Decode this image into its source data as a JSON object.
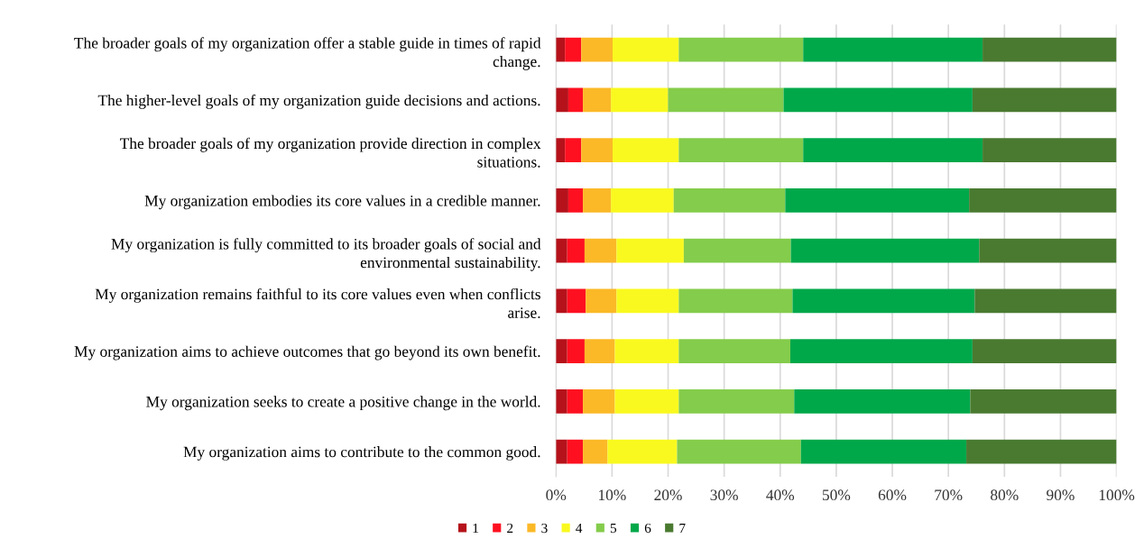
{
  "chart_data": {
    "type": "bar",
    "orientation": "horizontal",
    "stacked": true,
    "categories": [
      "The broader goals of my organization offer a stable guide in times of rapid\nchange.",
      "The higher-level goals of my organization guide decisions and actions.",
      "The broader goals of my organization provide direction in complex\nsituations.",
      "My organization embodies its core values in a credible manner.",
      "My organization is fully committed to its broader goals of social and\nenvironmental sustainability.",
      "My organization remains faithful to its core values even when conflicts\narise.",
      "My organization aims to achieve outcomes that go beyond its own benefit.",
      "My organization seeks to create a positive change in the world.",
      "My organization aims to contribute to the common good."
    ],
    "series": [
      {
        "name": "1",
        "color": "#b5121b",
        "values": [
          1.6,
          2.2,
          1.6,
          2.2,
          2.0,
          2.0,
          2.0,
          2.0,
          2.0
        ]
      },
      {
        "name": "2",
        "color": "#fe1020",
        "values": [
          2.9,
          2.6,
          2.9,
          2.6,
          3.1,
          3.3,
          3.1,
          2.8,
          2.8
        ]
      },
      {
        "name": "3",
        "color": "#fbb927",
        "values": [
          5.6,
          5.0,
          5.6,
          5.0,
          5.7,
          5.5,
          5.4,
          5.7,
          4.4
        ]
      },
      {
        "name": "4",
        "color": "#f9f91f",
        "values": [
          11.8,
          10.2,
          11.8,
          11.2,
          12.0,
          11.1,
          11.4,
          11.4,
          12.4
        ]
      },
      {
        "name": "5",
        "color": "#84cc4b",
        "values": [
          22.2,
          20.6,
          22.2,
          19.9,
          19.1,
          20.3,
          19.9,
          20.6,
          22.1
        ]
      },
      {
        "name": "6",
        "color": "#00a84a",
        "values": [
          32.0,
          33.7,
          32.0,
          32.8,
          33.6,
          32.5,
          32.5,
          31.4,
          29.5
        ]
      },
      {
        "name": "7",
        "color": "#4a7a30",
        "values": [
          23.9,
          25.7,
          23.9,
          26.3,
          24.5,
          25.3,
          25.7,
          26.1,
          26.8
        ]
      }
    ],
    "xlim": [
      0,
      100
    ],
    "xticks": [
      {
        "value": 0,
        "label": "0%"
      },
      {
        "value": 10,
        "label": "10%"
      },
      {
        "value": 20,
        "label": "20%"
      },
      {
        "value": 30,
        "label": "30%"
      },
      {
        "value": 40,
        "label": "40%"
      },
      {
        "value": 50,
        "label": "50%"
      },
      {
        "value": 60,
        "label": "60%"
      },
      {
        "value": 70,
        "label": "70%"
      },
      {
        "value": 80,
        "label": "80%"
      },
      {
        "value": 90,
        "label": "90%"
      },
      {
        "value": 100,
        "label": "100%"
      }
    ],
    "grid": "x",
    "legend": "bottom"
  }
}
